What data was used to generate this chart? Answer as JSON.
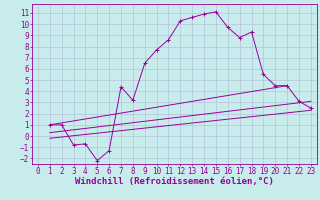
{
  "xlabel": "Windchill (Refroidissement éolien,°C)",
  "bg_color": "#c8ecec",
  "grid_color": "#b0b8d8",
  "line_color": "#990099",
  "xlim": [
    -0.5,
    23.5
  ],
  "ylim": [
    -2.5,
    11.8
  ],
  "xticks": [
    0,
    1,
    2,
    3,
    4,
    5,
    6,
    7,
    8,
    9,
    10,
    11,
    12,
    13,
    14,
    15,
    16,
    17,
    18,
    19,
    20,
    21,
    22,
    23
  ],
  "yticks": [
    -2,
    -1,
    0,
    1,
    2,
    3,
    4,
    5,
    6,
    7,
    8,
    9,
    10,
    11
  ],
  "line1_x": [
    1,
    2,
    3,
    4,
    5,
    6,
    7,
    8,
    9,
    10,
    11,
    12,
    13,
    14,
    15,
    16,
    17,
    18,
    19,
    20,
    21,
    22,
    23
  ],
  "line1_y": [
    1.0,
    1.0,
    -0.8,
    -0.7,
    -2.2,
    -1.3,
    4.4,
    3.2,
    6.5,
    7.7,
    8.6,
    10.3,
    10.6,
    10.9,
    11.1,
    9.7,
    8.8,
    9.3,
    5.5,
    4.5,
    4.5,
    3.1,
    2.5
  ],
  "line2_x": [
    1,
    21
  ],
  "line2_y": [
    1.0,
    4.5
  ],
  "line3_x": [
    1,
    23
  ],
  "line3_y": [
    0.3,
    3.1
  ],
  "line4_x": [
    1,
    23
  ],
  "line4_y": [
    -0.2,
    2.3
  ],
  "tick_fontsize": 5.5,
  "xlabel_fontsize": 6.5
}
